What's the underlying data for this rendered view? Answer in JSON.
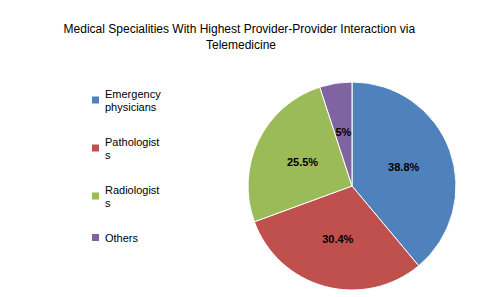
{
  "chart_data": {
    "type": "pie",
    "title": "Medical Specialities With Highest Provider-Provider Interaction via Telemedicine",
    "categories": [
      "Emergency physicians",
      "Pathologists",
      "Radiologists",
      "Others"
    ],
    "values": [
      38.8,
      30.4,
      25.5,
      5
    ],
    "value_labels": [
      "38.8%",
      "30.4%",
      "25.5%",
      "5%"
    ],
    "colors": [
      "#4f81bd",
      "#c0504d",
      "#9bbb59",
      "#8064a2"
    ],
    "data_labels": true,
    "legend": "left"
  }
}
